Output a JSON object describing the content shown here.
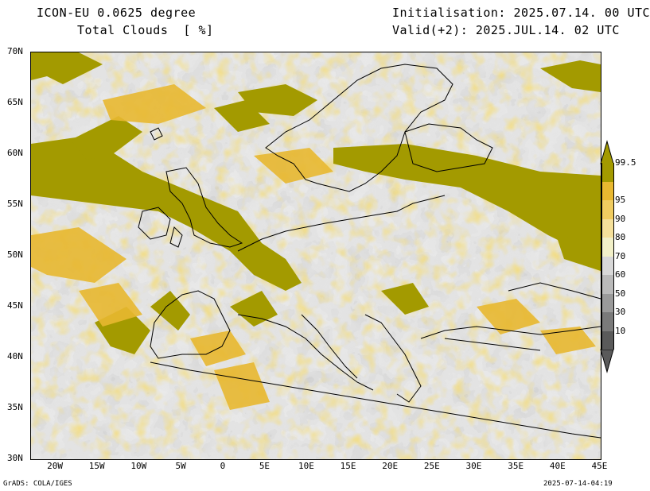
{
  "header": {
    "model": "ICON-EU 0.0625 degree",
    "field": "Total Clouds  [ %]",
    "init": "Initialisation: 2025.07.14. 00 UTC",
    "valid": "Valid(+2): 2025.JUL.14. 02 UTC"
  },
  "axes": {
    "lat_labels": [
      "70N",
      "65N",
      "60N",
      "55N",
      "50N",
      "45N",
      "40N",
      "35N",
      "30N"
    ],
    "lat_values": [
      70,
      65,
      60,
      55,
      50,
      45,
      40,
      35,
      30
    ],
    "lon_labels": [
      "20W",
      "15W",
      "10W",
      "5W",
      "0",
      "5E",
      "10E",
      "15E",
      "20E",
      "25E",
      "30E",
      "35E",
      "40E",
      "45E"
    ],
    "lon_values": [
      -20,
      -15,
      -10,
      -5,
      0,
      5,
      10,
      15,
      20,
      25,
      30,
      35,
      40,
      45
    ],
    "lon_range": [
      -23,
      45
    ],
    "lat_range": [
      30,
      70
    ]
  },
  "colorbar": {
    "labels": [
      "99.5",
      "95",
      "90",
      "80",
      "70",
      "60",
      "50",
      "30",
      "10"
    ],
    "colors": [
      "#a39a00",
      "#e8b830",
      "#f0cc60",
      "#f5e09a",
      "#f2f0c8",
      "#d8d8d8",
      "#bababa",
      "#9a9a9a",
      "#7a7a7a",
      "#5a5a5a"
    ]
  },
  "footer": {
    "left": "GrADS: COLA/IGES",
    "right": "2025-07-14-04:19"
  }
}
